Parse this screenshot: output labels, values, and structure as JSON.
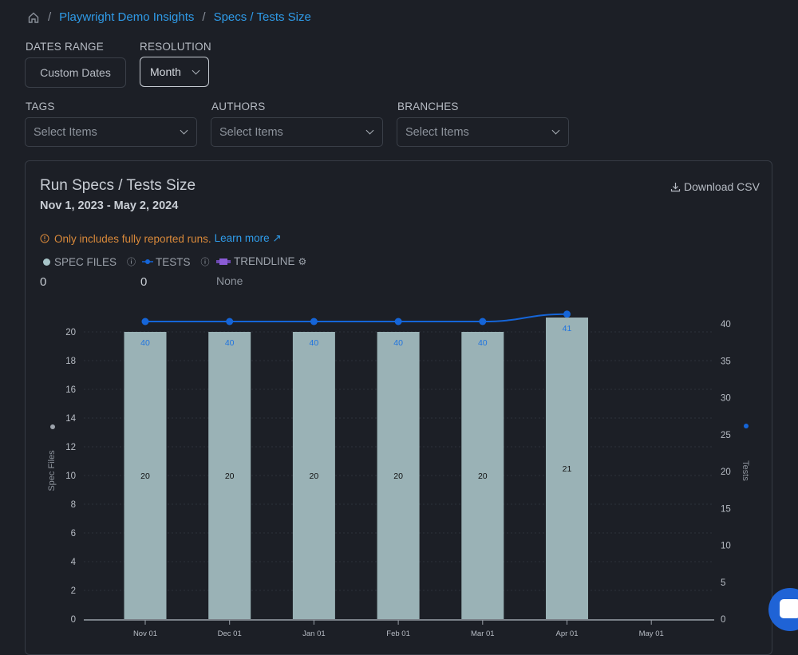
{
  "breadcrumb": {
    "home_icon": "home-icon",
    "items": [
      "Playwright Demo Insights",
      "Specs / Tests Size"
    ]
  },
  "filters": {
    "dates_range": {
      "label": "DATES RANGE",
      "button": "Custom Dates"
    },
    "resolution": {
      "label": "RESOLUTION",
      "value": "Month"
    },
    "tags": {
      "label": "TAGS",
      "placeholder": "Select Items"
    },
    "authors": {
      "label": "AUTHORS",
      "placeholder": "Select Items"
    },
    "branches": {
      "label": "BRANCHES",
      "placeholder": "Select Items"
    }
  },
  "card": {
    "title": "Run Specs / Tests Size",
    "date_range": "Nov 1, 2023 - May 2, 2024",
    "download": "Download CSV",
    "notice": "Only includes fully reported runs.",
    "learn_more": "Learn more",
    "legend": [
      {
        "label": "SPEC FILES",
        "value": "0",
        "color": "#a7c4c8"
      },
      {
        "label": "TESTS",
        "value": "0",
        "color": "#1565d8"
      },
      {
        "label": "TRENDLINE",
        "value": "None",
        "color": "#8a5cd6"
      }
    ]
  },
  "colors": {
    "accent": "#2f9be8",
    "warning": "#d9893a",
    "bar": "#9ab2b6",
    "line": "#1565d8"
  },
  "chart_data": {
    "type": "bar+line",
    "categories": [
      "Nov 01",
      "Dec 01",
      "Jan 01",
      "Feb 01",
      "Mar 01",
      "Apr 01",
      "May 01"
    ],
    "series": [
      {
        "name": "Spec Files",
        "type": "bar",
        "axis": "left",
        "values": [
          20,
          20,
          20,
          20,
          20,
          21,
          null
        ]
      },
      {
        "name": "Tests",
        "type": "line",
        "axis": "right",
        "values": [
          40,
          40,
          40,
          40,
          40,
          41,
          null
        ]
      }
    ],
    "ylabel_left": "Spec Files",
    "ylim_left": [
      0,
      20
    ],
    "yticks_left": [
      0,
      2,
      4,
      6,
      8,
      10,
      12,
      14,
      16,
      18,
      20
    ],
    "ylabel_right": "Tests",
    "ylim_right": [
      0,
      40
    ],
    "yticks_right": [
      0,
      5,
      10,
      15,
      20,
      25,
      30,
      35,
      40
    ],
    "grid": true
  }
}
